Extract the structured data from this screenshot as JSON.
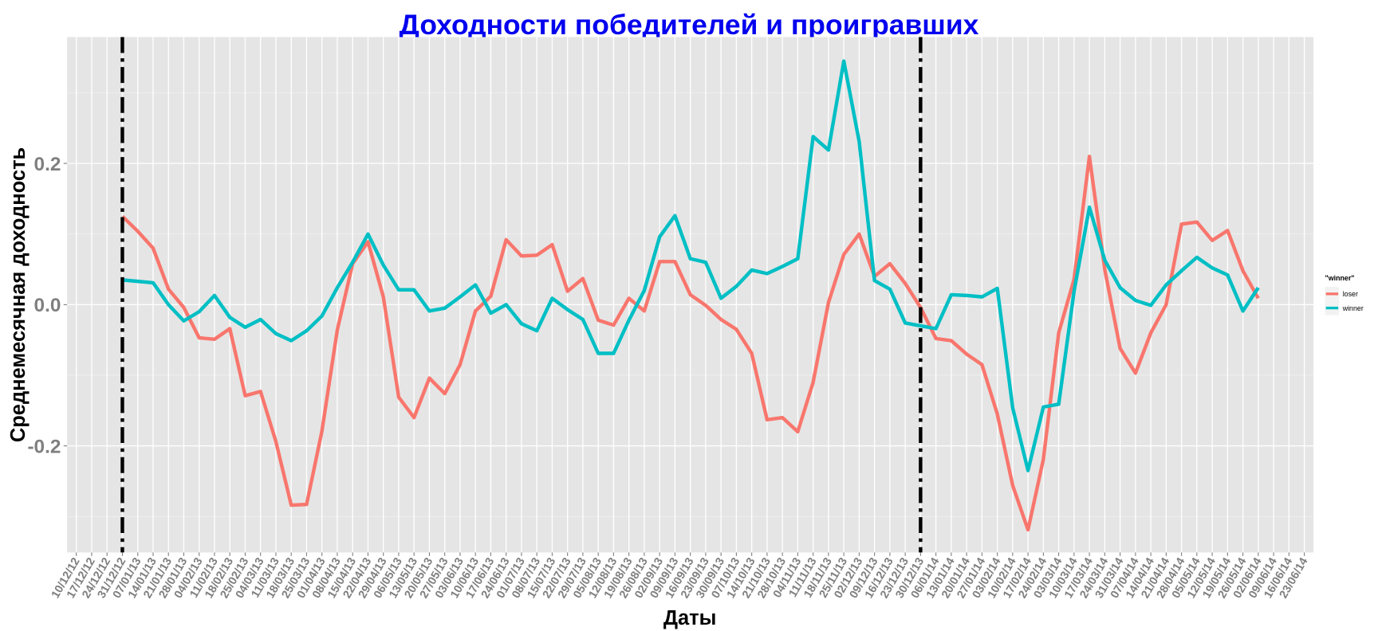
{
  "chart_data": {
    "type": "line",
    "title": "Доходности победителей и проигравших",
    "x_label": "Даты",
    "y_label": "Среднемесячная доходность",
    "categories": [
      "10/12/12",
      "17/12/12",
      "24/12/12",
      "31/12/12",
      "07/01/13",
      "14/01/13",
      "21/01/13",
      "28/01/13",
      "04/02/13",
      "11/02/13",
      "18/02/13",
      "25/02/13",
      "04/03/13",
      "11/03/13",
      "18/03/13",
      "25/03/13",
      "01/04/13",
      "08/04/13",
      "15/04/13",
      "22/04/13",
      "29/04/13",
      "06/05/13",
      "13/05/13",
      "20/05/13",
      "27/05/13",
      "03/06/13",
      "10/06/13",
      "17/06/13",
      "24/06/13",
      "01/07/13",
      "08/07/13",
      "15/07/13",
      "22/07/13",
      "29/07/13",
      "05/08/13",
      "12/08/13",
      "19/08/13",
      "26/08/13",
      "02/09/13",
      "09/09/13",
      "16/09/13",
      "23/09/13",
      "30/09/13",
      "07/10/13",
      "14/10/13",
      "21/10/13",
      "28/10/13",
      "04/11/13",
      "11/11/13",
      "18/11/13",
      "25/11/13",
      "02/12/13",
      "09/12/13",
      "16/12/13",
      "23/12/13",
      "30/12/13",
      "06/01/14",
      "13/01/14",
      "20/01/14",
      "27/01/14",
      "03/02/14",
      "10/02/14",
      "17/02/14",
      "24/02/14",
      "03/03/14",
      "10/03/14",
      "17/03/14",
      "24/03/14",
      "31/03/14",
      "07/04/14",
      "14/04/14",
      "21/04/14",
      "28/04/14",
      "05/05/14",
      "12/05/14",
      "19/05/14",
      "26/05/14",
      "02/06/14",
      "09/06/14",
      "16/06/14",
      "23/06/14"
    ],
    "series": [
      {
        "name": "loser",
        "color": "#F8766D",
        "values": [
          null,
          null,
          null,
          0.125,
          0.104,
          0.08,
          0.022,
          -0.004,
          -0.047,
          -0.049,
          -0.034,
          -0.129,
          -0.123,
          -0.194,
          -0.284,
          -0.283,
          -0.179,
          -0.036,
          0.058,
          0.089,
          0.011,
          -0.131,
          -0.16,
          -0.104,
          -0.126,
          -0.085,
          -0.009,
          0.012,
          0.092,
          0.069,
          0.07,
          0.085,
          0.019,
          0.037,
          -0.022,
          -0.029,
          0.009,
          -0.009,
          0.061,
          0.061,
          0.014,
          -0.001,
          -0.021,
          -0.035,
          -0.069,
          -0.163,
          -0.16,
          -0.18,
          -0.11,
          0.003,
          0.071,
          0.1,
          0.04,
          0.058,
          0.03,
          -0.004,
          -0.048,
          -0.051,
          -0.07,
          -0.085,
          -0.155,
          -0.256,
          -0.319,
          -0.219,
          -0.04,
          0.036,
          0.21,
          0.05,
          -0.062,
          -0.097,
          -0.04,
          0.0,
          0.114,
          0.117,
          0.091,
          0.105,
          0.048,
          0.009,
          null,
          null,
          null
        ]
      },
      {
        "name": "winner",
        "color": "#00BFC4",
        "values": [
          null,
          null,
          null,
          0.035,
          0.033,
          0.031,
          0.0,
          -0.023,
          -0.01,
          0.013,
          -0.018,
          -0.032,
          -0.021,
          -0.041,
          -0.051,
          -0.037,
          -0.016,
          0.024,
          0.06,
          0.1,
          0.056,
          0.021,
          0.021,
          -0.009,
          -0.005,
          0.011,
          0.028,
          -0.012,
          0.0,
          -0.027,
          -0.037,
          0.009,
          -0.007,
          -0.021,
          -0.069,
          -0.069,
          -0.022,
          0.02,
          0.096,
          0.126,
          0.065,
          0.06,
          0.009,
          0.026,
          0.049,
          0.044,
          0.054,
          0.065,
          0.238,
          0.219,
          0.345,
          0.231,
          0.034,
          0.022,
          -0.026,
          -0.03,
          -0.034,
          0.014,
          0.013,
          0.011,
          0.023,
          -0.146,
          -0.235,
          -0.145,
          -0.141,
          0.019,
          0.138,
          0.063,
          0.024,
          0.006,
          -0.001,
          0.028,
          0.048,
          0.067,
          0.052,
          0.042,
          -0.009,
          0.024,
          null,
          null,
          null
        ]
      }
    ],
    "ylim": [
      -0.351,
      0.379
    ],
    "yticks": [
      -0.2,
      {
        "value": 0,
        "label": "0.0"
      },
      0.2
    ],
    "grid": true,
    "legend_title": "\"winner\"",
    "legend": "right",
    "vlines": [
      "31/12/12",
      "30/12/13"
    ]
  }
}
